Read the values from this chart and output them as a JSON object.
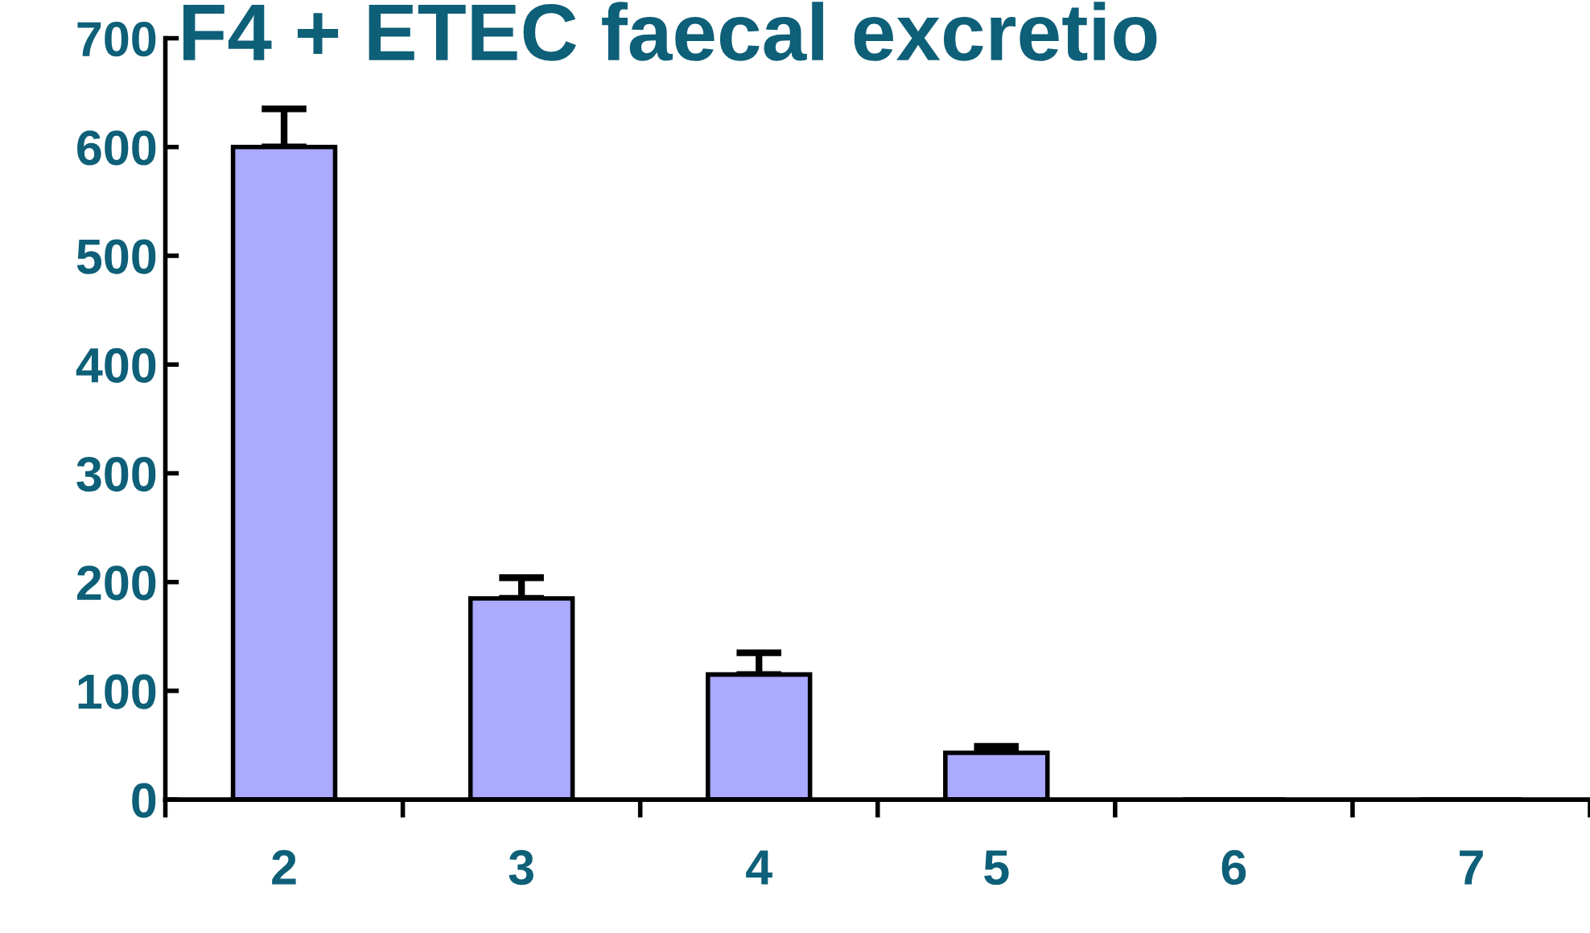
{
  "chart_data": {
    "type": "bar",
    "title": "F4 + ETEC faecal excretio",
    "categories": [
      "2",
      "3",
      "4",
      "5",
      "6",
      "7"
    ],
    "values": [
      600,
      185,
      115,
      43,
      0,
      0
    ],
    "errors": [
      [
        600,
        635
      ],
      [
        185,
        204
      ],
      [
        115,
        135
      ],
      [
        43,
        49
      ],
      null,
      null
    ],
    "color": "#aaaaff",
    "ylim": [
      0,
      700
    ],
    "yticks": [
      0,
      100,
      200,
      300,
      400,
      500,
      600,
      700
    ],
    "grid": false,
    "legend": false
  }
}
